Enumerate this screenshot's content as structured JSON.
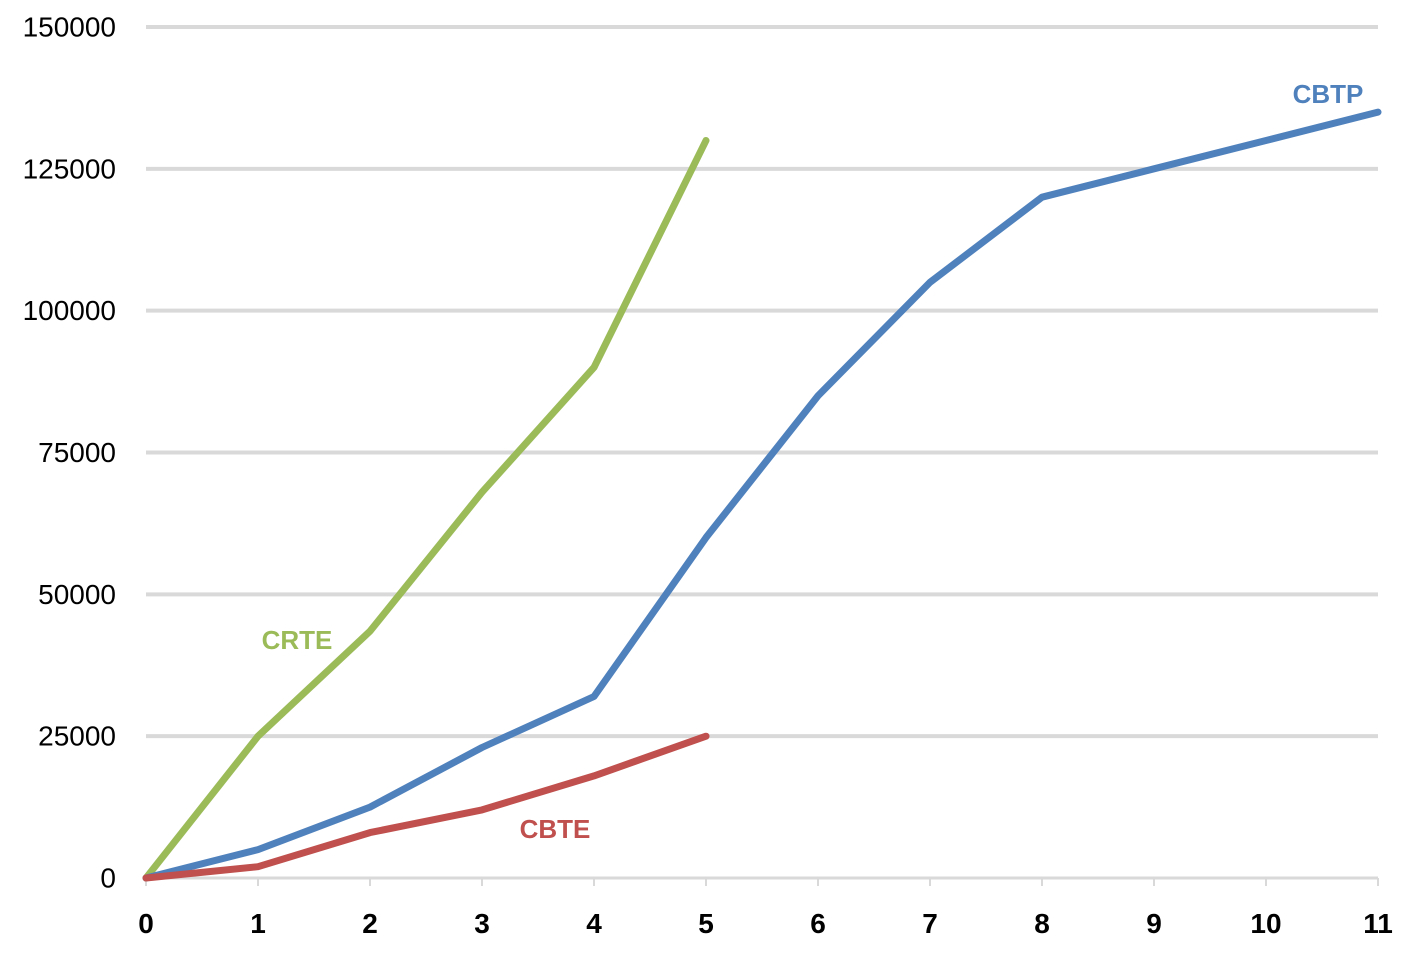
{
  "chart_data": {
    "type": "line",
    "title": "",
    "xlabel": "",
    "ylabel": "",
    "xlim": [
      0,
      11
    ],
    "ylim": [
      0,
      150000
    ],
    "x_ticks": [
      "0",
      "1",
      "2",
      "3",
      "4",
      "5",
      "6",
      "7",
      "8",
      "9",
      "10",
      "11"
    ],
    "y_ticks": [
      "0",
      "25000",
      "50000",
      "75000",
      "100000",
      "125000",
      "150000"
    ],
    "grid": "horizontal",
    "legend": "none",
    "series": [
      {
        "name": "CRTE",
        "color": "#9BBB59",
        "x": [
          0,
          1,
          2,
          3,
          4,
          5
        ],
        "y": [
          0,
          25000,
          43500,
          68000,
          90000,
          130000
        ]
      },
      {
        "name": "CBTP",
        "color": "#4F81BD",
        "x": [
          0,
          1,
          2,
          3,
          4,
          5,
          6,
          7,
          8,
          9,
          10,
          11
        ],
        "y": [
          0,
          5000,
          12500,
          23000,
          32000,
          60000,
          85000,
          105000,
          120000,
          125000,
          130000,
          135000
        ]
      },
      {
        "name": "CBTE",
        "color": "#C0504D",
        "x": [
          0,
          1,
          2,
          3,
          4,
          5
        ],
        "y": [
          0,
          2000,
          8000,
          12000,
          18000,
          25000
        ]
      }
    ]
  }
}
